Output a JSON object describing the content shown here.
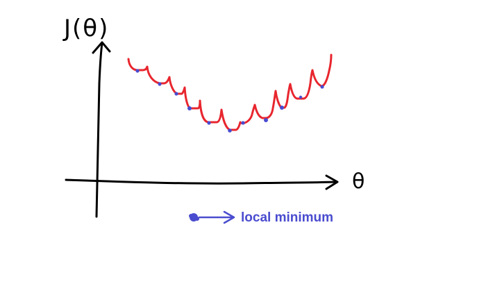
{
  "axes": {
    "y_label": "J(θ)",
    "x_label": "θ"
  },
  "legend": {
    "label": "local minimum",
    "marker_icon": "blue-dot-icon",
    "arrow_icon": "right-arrow-icon"
  },
  "colors": {
    "curve": "#e8262e",
    "minima": "#4a4ccf",
    "axes": "#000000",
    "legend_text": "#4a4ccf"
  }
}
